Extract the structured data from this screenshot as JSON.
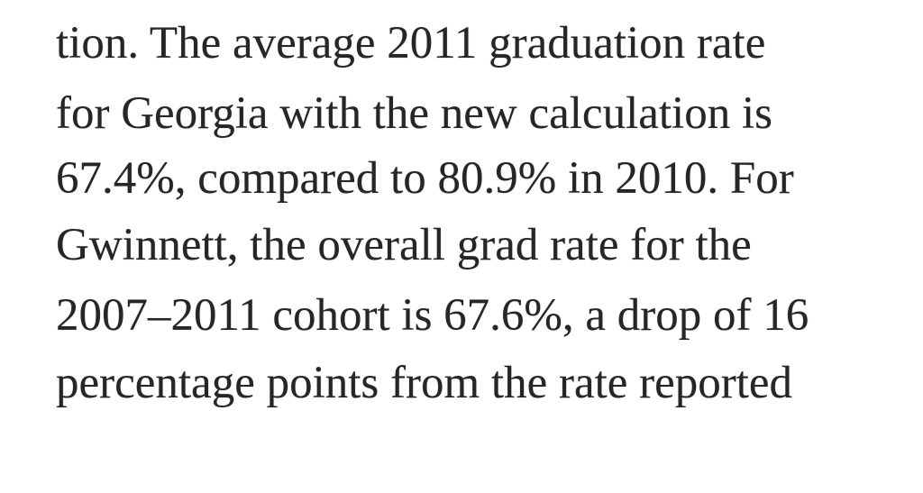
{
  "paragraph": {
    "lines": [
      "tion. The average 2011 graduation rate",
      "for Georgia with the new calculation is",
      "67.4%, compared to 80.9% in 2010. For",
      "Gwinnett, the overall grad rate for the",
      "2007–2011 cohort is 67.6%, a drop of 16",
      "percentage points from the rate reported"
    ]
  }
}
